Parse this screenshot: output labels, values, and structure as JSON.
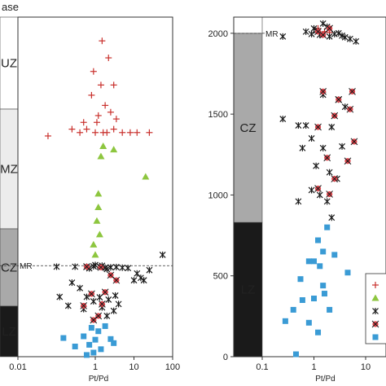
{
  "header_text": "ase",
  "colors": {
    "plus": "#c9302c",
    "triangle": "#8dc63f",
    "cross": "#1a1a1a",
    "starred_fill": "#e0454c",
    "square": "#3a9bd5"
  },
  "chart_data": [
    {
      "type": "scatter",
      "title": "",
      "xlabel": "Pt/Pd",
      "ylabel": "",
      "xscale": "log",
      "xlim": [
        0.01,
        100
      ],
      "x_ticks": [
        "0.01",
        "1",
        "10",
        "100"
      ],
      "y_ticks": [],
      "grid": false,
      "zones": [
        {
          "label": "UZ",
          "color": "#ffffff"
        },
        {
          "label": "MZ",
          "color": "#ececec"
        },
        {
          "label": "CZ",
          "color": "#a9a9a9"
        },
        {
          "label": "LZ",
          "color": "#1a1a1a"
        }
      ],
      "marker_label": "MR",
      "series": [
        {
          "marker": "plus",
          "points": [
            [
              1.5,
              0.93
            ],
            [
              2.2,
              0.88
            ],
            [
              0.9,
              0.84
            ],
            [
              1.4,
              0.8
            ],
            [
              3.0,
              0.8
            ],
            [
              0.8,
              0.77
            ],
            [
              1.8,
              0.74
            ],
            [
              2.5,
              0.72
            ],
            [
              1.1,
              0.69
            ],
            [
              2.0,
              0.66
            ],
            [
              0.06,
              0.65
            ],
            [
              0.25,
              0.67
            ],
            [
              0.4,
              0.66
            ],
            [
              0.6,
              0.67
            ],
            [
              1.0,
              0.66
            ],
            [
              1.6,
              0.66
            ],
            [
              3.0,
              0.67
            ],
            [
              5.0,
              0.66
            ],
            [
              8.0,
              0.66
            ],
            [
              12,
              0.66
            ],
            [
              25,
              0.66
            ],
            [
              0.5,
              0.69
            ],
            [
              1.2,
              0.71
            ],
            [
              3.5,
              0.7
            ]
          ]
        },
        {
          "marker": "triangle",
          "points": [
            [
              1.6,
              0.62
            ],
            [
              3.0,
              0.61
            ],
            [
              1.4,
              0.59
            ],
            [
              20,
              0.53
            ],
            [
              1.2,
              0.48
            ],
            [
              1.1,
              0.4
            ],
            [
              1.3,
              0.36
            ],
            [
              0.9,
              0.33
            ],
            [
              1.0,
              0.3
            ],
            [
              1.2,
              0.44
            ]
          ]
        },
        {
          "marker": "cross",
          "points": [
            [
              0.1,
              0.265
            ],
            [
              0.3,
              0.265
            ],
            [
              0.6,
              0.265
            ],
            [
              0.9,
              0.266
            ],
            [
              1.3,
              0.265
            ],
            [
              1.8,
              0.262
            ],
            [
              2.5,
              0.263
            ],
            [
              3.5,
              0.264
            ],
            [
              5,
              0.262
            ],
            [
              7,
              0.261
            ],
            [
              1.0,
              0.27
            ],
            [
              1.5,
              0.268
            ],
            [
              0.7,
              0.26
            ],
            [
              2.0,
              0.258
            ],
            [
              12,
              0.245
            ],
            [
              15,
              0.232
            ],
            [
              18,
              0.225
            ],
            [
              25,
              0.255
            ],
            [
              55,
              0.3
            ],
            [
              10,
              0.225
            ],
            [
              0.25,
              0.218
            ],
            [
              0.4,
              0.202
            ],
            [
              0.12,
              0.176
            ],
            [
              0.6,
              0.176
            ],
            [
              0.9,
              0.163
            ],
            [
              1.3,
              0.175
            ],
            [
              2.2,
              0.168
            ],
            [
              3.3,
              0.18
            ],
            [
              0.2,
              0.15
            ],
            [
              0.5,
              0.14
            ],
            [
              1.5,
              0.145
            ],
            [
              3.0,
              0.135
            ],
            [
              2.0,
              0.12
            ],
            [
              4.0,
              0.155
            ]
          ]
        },
        {
          "marker": "starred",
          "points": [
            [
              0.6,
              0.265
            ],
            [
              1.4,
              0.263
            ],
            [
              2.5,
              0.24
            ],
            [
              3.5,
              0.225
            ],
            [
              0.8,
              0.185
            ],
            [
              1.8,
              0.19
            ],
            [
              0.5,
              0.15
            ],
            [
              1.5,
              0.155
            ],
            [
              1.2,
              0.12
            ],
            [
              0.9,
              0.108
            ]
          ]
        },
        {
          "marker": "square",
          "points": [
            [
              0.8,
              0.085
            ],
            [
              1.2,
              0.075
            ],
            [
              1.8,
              0.09
            ],
            [
              0.15,
              0.055
            ],
            [
              0.5,
              0.06
            ],
            [
              1.0,
              0.05
            ],
            [
              2.5,
              0.052
            ],
            [
              0.3,
              0.03
            ],
            [
              0.7,
              0.035
            ],
            [
              1.4,
              0.022
            ],
            [
              0.9,
              0.012
            ],
            [
              3.0,
              0.04
            ],
            [
              0.6,
              0.005
            ]
          ]
        }
      ]
    },
    {
      "type": "scatter",
      "title": "",
      "xlabel": "Pt/Pd",
      "ylabel": "",
      "xscale": "log",
      "xlim": [
        0.1,
        10
      ],
      "ylim": [
        0,
        2100
      ],
      "x_ticks": [
        "0.1",
        "1",
        "10"
      ],
      "y_ticks": [
        "0",
        "500",
        "1000",
        "1500",
        "2000"
      ],
      "grid": false,
      "zones": [
        {
          "label": "CZ",
          "color": "#a9a9a9"
        },
        {
          "label": "LZ",
          "color": "#1a1a1a"
        }
      ],
      "marker_label": "MR",
      "legend_position": "right",
      "series": [
        {
          "marker": "plus",
          "points": [
            [
              1.2,
              2030
            ],
            [
              1.6,
              2010
            ],
            [
              2.0,
              2005
            ]
          ]
        },
        {
          "marker": "cross",
          "points": [
            [
              0.25,
              1980
            ],
            [
              0.7,
              2010
            ],
            [
              0.9,
              1995
            ],
            [
              1.0,
              2030
            ],
            [
              1.1,
              2015
            ],
            [
              1.3,
              1990
            ],
            [
              1.5,
              2060
            ],
            [
              1.8,
              2040
            ],
            [
              2.0,
              1980
            ],
            [
              2.5,
              1995
            ],
            [
              3.0,
              2000
            ],
            [
              3.5,
              1985
            ],
            [
              4.0,
              1975
            ],
            [
              5.0,
              1965
            ],
            [
              6.5,
              1950
            ],
            [
              1.5,
              1620
            ],
            [
              3.0,
              1590
            ],
            [
              4.0,
              1545
            ],
            [
              0.25,
              1470
            ],
            [
              0.5,
              1430
            ],
            [
              0.9,
              1350
            ],
            [
              0.7,
              1430
            ],
            [
              2.2,
              1420
            ],
            [
              0.6,
              1290
            ],
            [
              1.5,
              1290
            ],
            [
              3.5,
              1300
            ],
            [
              1.1,
              1180
            ],
            [
              2.0,
              1140
            ],
            [
              2.8,
              1100
            ],
            [
              0.9,
              1030
            ],
            [
              1.3,
              1000
            ],
            [
              0.5,
              960
            ],
            [
              1.8,
              960
            ],
            [
              2.2,
              860
            ]
          ]
        },
        {
          "marker": "starred",
          "points": [
            [
              1.2,
              2010
            ],
            [
              1.5,
              1990
            ],
            [
              2.0,
              2030
            ],
            [
              1.5,
              1640
            ],
            [
              3.0,
              1590
            ],
            [
              5.5,
              1640
            ],
            [
              2.5,
              1490
            ],
            [
              5.0,
              1530
            ],
            [
              1.2,
              1420
            ],
            [
              6.0,
              1330
            ],
            [
              1.8,
              1230
            ],
            [
              4.5,
              1210
            ],
            [
              1.2,
              1040
            ],
            [
              2.5,
              1100
            ],
            [
              2.0,
              1005
            ]
          ]
        },
        {
          "marker": "square",
          "points": [
            [
              1.8,
              800
            ],
            [
              1.2,
              720
            ],
            [
              1.5,
              650
            ],
            [
              2.5,
              630
            ],
            [
              1.0,
              590
            ],
            [
              0.8,
              590
            ],
            [
              1.3,
              560
            ],
            [
              0.55,
              480
            ],
            [
              4.5,
              520
            ],
            [
              1.5,
              440
            ],
            [
              1.0,
              360
            ],
            [
              0.6,
              350
            ],
            [
              1.6,
              390
            ],
            [
              0.4,
              290
            ],
            [
              2.0,
              290
            ],
            [
              0.8,
              210
            ],
            [
              0.28,
              220
            ],
            [
              1.2,
              150
            ],
            [
              0.45,
              15
            ]
          ]
        }
      ]
    }
  ]
}
